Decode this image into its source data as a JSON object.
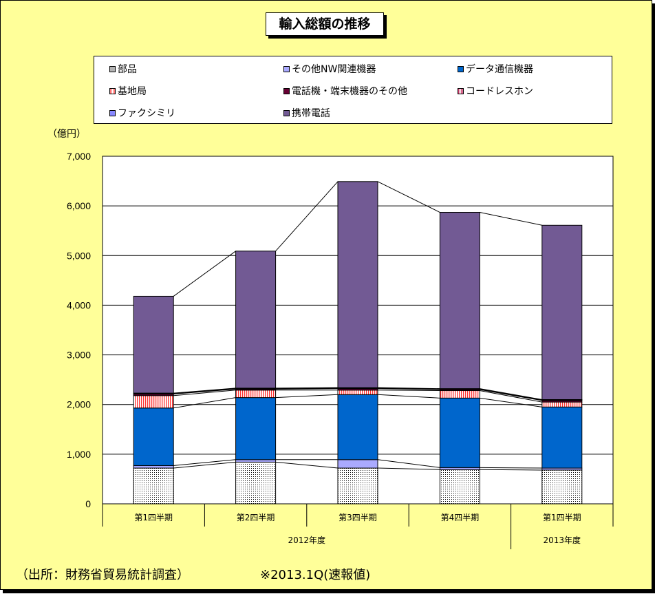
{
  "title": "輸入総額の推移",
  "unit_label": "（億円）",
  "source": "（出所：財務省貿易統計調査）",
  "note": "※2013.1Q(速報値)",
  "colors": {
    "background": "#ffff99",
    "parts": "#ffffff",
    "other_nw": "#aaaaff",
    "data_comm": "#0066cc",
    "base_station": "#ff6666",
    "phone_other": "#660033",
    "cordless": "#ffffff",
    "fax": "#8888ff",
    "mobile": "#725a94"
  },
  "chart_data": {
    "type": "bar",
    "stacked": true,
    "categories": [
      "第1四半期",
      "第2四半期",
      "第3四半期",
      "第4四半期",
      "第1四半期"
    ],
    "groups": [
      {
        "label": "2012年度",
        "span": 4
      },
      {
        "label": "2013年度",
        "span": 1
      }
    ],
    "ylim": [
      0,
      7000
    ],
    "yticks": [
      "0",
      "1,000",
      "2,000",
      "3,000",
      "4,000",
      "5,000",
      "6,000",
      "7,000"
    ],
    "grid": true,
    "series_lines": true,
    "series": [
      {
        "name": "部品",
        "key": "parts",
        "values": [
          720,
          840,
          720,
          690,
          680
        ]
      },
      {
        "name": "その他NW関連機器",
        "key": "other_nw",
        "values": [
          50,
          50,
          170,
          40,
          40
        ]
      },
      {
        "name": "データ通信機器",
        "key": "data_comm",
        "values": [
          1160,
          1250,
          1310,
          1400,
          1230
        ]
      },
      {
        "name": "基地局",
        "key": "base_station",
        "values": [
          250,
          150,
          90,
          150,
          100
        ]
      },
      {
        "name": "電話機・端末機器のその他",
        "key": "phone_other",
        "values": [
          30,
          20,
          30,
          20,
          30
        ]
      },
      {
        "name": "コードレスホン",
        "key": "cordless",
        "values": [
          10,
          10,
          10,
          10,
          10
        ]
      },
      {
        "name": "ファクシミリ",
        "key": "fax",
        "values": [
          10,
          10,
          10,
          10,
          10
        ]
      },
      {
        "name": "携帯電話",
        "key": "mobile",
        "values": [
          1950,
          2760,
          4150,
          3550,
          3510
        ]
      }
    ]
  }
}
